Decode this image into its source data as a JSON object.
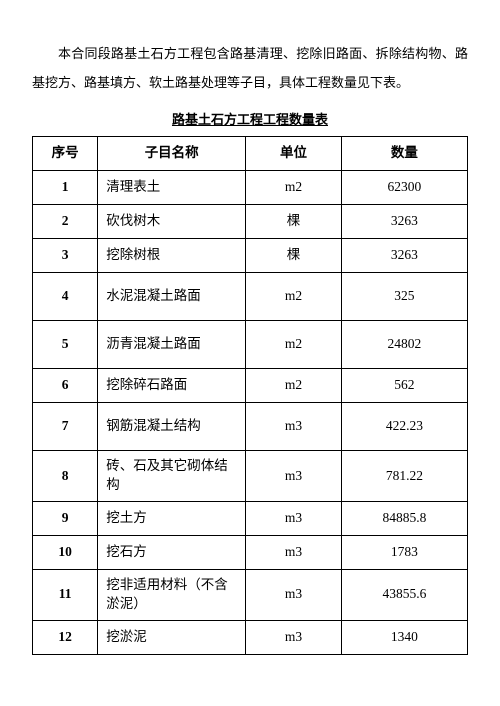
{
  "intro": "本合同段路基土石方工程包含路基清理、挖除旧路面、拆除结构物、路基挖方、路基填方、软土路基处理等子目，具体工程数量见下表。",
  "tableTitle": "路基土石方工程工程数量表",
  "headers": {
    "seq": "序号",
    "name": "子目名称",
    "unit": "单位",
    "qty": "数量"
  },
  "rows": [
    {
      "seq": "1",
      "name": "清理表土",
      "unit": "m2",
      "qty": "62300",
      "tall": false
    },
    {
      "seq": "2",
      "name": "砍伐树木",
      "unit": "棵",
      "qty": "3263",
      "tall": false
    },
    {
      "seq": "3",
      "name": "挖除树根",
      "unit": "棵",
      "qty": "3263",
      "tall": false
    },
    {
      "seq": "4",
      "name": "水泥混凝土路面",
      "unit": "m2",
      "qty": "325",
      "tall": true
    },
    {
      "seq": "5",
      "name": "沥青混凝土路面",
      "unit": "m2",
      "qty": "24802",
      "tall": true
    },
    {
      "seq": "6",
      "name": "挖除碎石路面",
      "unit": "m2",
      "qty": "562",
      "tall": false
    },
    {
      "seq": "7",
      "name": "钢筋混凝土结构",
      "unit": "m3",
      "qty": "422.23",
      "tall": true
    },
    {
      "seq": "8",
      "name": "砖、石及其它砌体结构",
      "unit": "m3",
      "qty": "781.22",
      "tall": true
    },
    {
      "seq": "9",
      "name": "挖土方",
      "unit": "m3",
      "qty": "84885.8",
      "tall": false
    },
    {
      "seq": "10",
      "name": "挖石方",
      "unit": "m3",
      "qty": "1783",
      "tall": false
    },
    {
      "seq": "11",
      "name": "挖非适用材料（不含淤泥）",
      "unit": "m3",
      "qty": "43855.6",
      "tall": true
    },
    {
      "seq": "12",
      "name": "挖淤泥",
      "unit": "m3",
      "qty": "1340",
      "tall": false
    }
  ]
}
